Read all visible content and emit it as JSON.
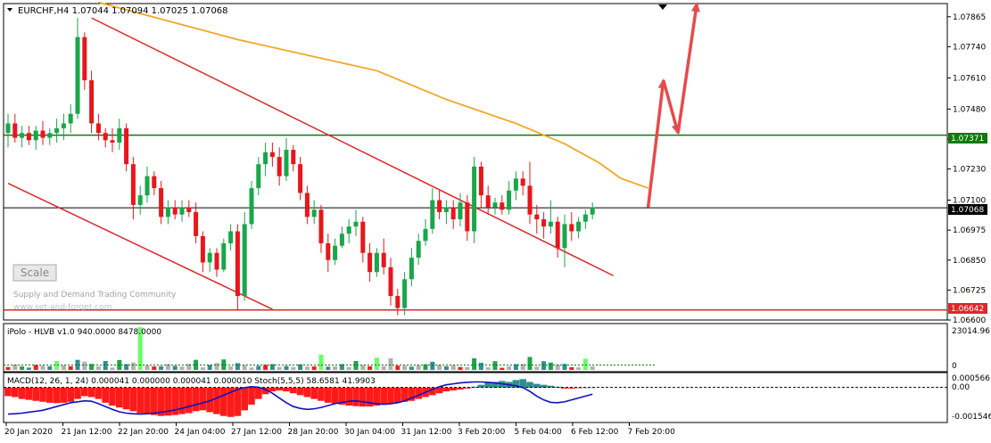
{
  "header": {
    "menu_icon": "triangle-down-icon",
    "quote_line": "EURCHF,H4  1.07044 1.07094 1.07025 1.07068"
  },
  "watermark": {
    "button_label": "Scale",
    "line1": "Supply and Demand Trading Community",
    "line2": "www.set-and-forget.com"
  },
  "colors": {
    "bull": "#1aa64a",
    "bear": "#e8161b",
    "ma": "#f5a623",
    "channel": "#e0262b",
    "support": "#e0262b",
    "resistance": "#0f7a0f",
    "macd_pos": "#2f8f8f",
    "macd_neg": "#ff1a1a",
    "stoch_line": "#1010c0",
    "axis": "#000000"
  },
  "main_axis": {
    "ticks": [
      "1.07865",
      "1.07740",
      "1.07610",
      "1.07480",
      "1.07355",
      "1.07230",
      "1.07100",
      "1.06975",
      "1.06850",
      "1.06725",
      "1.06600"
    ],
    "resistance_label": "1.07371",
    "price_label": "1.07068",
    "support_label": "1.06642"
  },
  "volume_panel": {
    "title": "iPolo - HLVB v1.0 940.0000 8478.0000",
    "axis_top": "23014.96",
    "axis_bottom": "0"
  },
  "macd_panel": {
    "title": "MACD(12, 26, 1, 24) 0.000041 0.000000 0.000041 0.000010  Stoch(5,5,5) 58.6581 41.9903",
    "axis_top": "0.000566",
    "axis_mid": "0.00",
    "axis_bottom": "-0.001546"
  },
  "time_axis": {
    "labels": [
      "20 Jan 2020",
      "21 Jan 12:00",
      "22 Jan 20:00",
      "24 Jan 04:00",
      "27 Jan 12:00",
      "28 Jan 20:00",
      "30 Jan 04:00",
      "31 Jan 12:00",
      "3 Feb 20:00",
      "5 Feb 04:00",
      "6 Feb 12:00",
      "7 Feb 20:00"
    ]
  },
  "chart_data": {
    "type": "candlestick",
    "symbol": "EURCHF",
    "timeframe": "H4",
    "ylim": [
      1.066,
      1.0792
    ],
    "candles": [
      {
        "o": 1.0738,
        "h": 1.0746,
        "l": 1.0732,
        "c": 1.0742
      },
      {
        "o": 1.0742,
        "h": 1.0746,
        "l": 1.0734,
        "c": 1.0736
      },
      {
        "o": 1.0736,
        "h": 1.0741,
        "l": 1.0732,
        "c": 1.0738
      },
      {
        "o": 1.0738,
        "h": 1.0741,
        "l": 1.0733,
        "c": 1.0735
      },
      {
        "o": 1.0735,
        "h": 1.0741,
        "l": 1.0731,
        "c": 1.0739
      },
      {
        "o": 1.0739,
        "h": 1.0743,
        "l": 1.0733,
        "c": 1.0736
      },
      {
        "o": 1.0736,
        "h": 1.074,
        "l": 1.0733,
        "c": 1.0738
      },
      {
        "o": 1.0738,
        "h": 1.0744,
        "l": 1.0734,
        "c": 1.074
      },
      {
        "o": 1.074,
        "h": 1.0746,
        "l": 1.0735,
        "c": 1.0742
      },
      {
        "o": 1.0742,
        "h": 1.075,
        "l": 1.0738,
        "c": 1.0746
      },
      {
        "o": 1.0746,
        "h": 1.0786,
        "l": 1.0744,
        "c": 1.0778
      },
      {
        "o": 1.0778,
        "h": 1.078,
        "l": 1.0756,
        "c": 1.076
      },
      {
        "o": 1.076,
        "h": 1.0764,
        "l": 1.0738,
        "c": 1.0742
      },
      {
        "o": 1.0742,
        "h": 1.0746,
        "l": 1.0735,
        "c": 1.0738
      },
      {
        "o": 1.0738,
        "h": 1.074,
        "l": 1.0732,
        "c": 1.0735
      },
      {
        "o": 1.0735,
        "h": 1.074,
        "l": 1.073,
        "c": 1.0734
      },
      {
        "o": 1.0734,
        "h": 1.0744,
        "l": 1.0731,
        "c": 1.074
      },
      {
        "o": 1.074,
        "h": 1.0742,
        "l": 1.0722,
        "c": 1.0725
      },
      {
        "o": 1.0725,
        "h": 1.0728,
        "l": 1.0702,
        "c": 1.0708
      },
      {
        "o": 1.0708,
        "h": 1.0716,
        "l": 1.0704,
        "c": 1.0712
      },
      {
        "o": 1.0712,
        "h": 1.0724,
        "l": 1.0709,
        "c": 1.072
      },
      {
        "o": 1.072,
        "h": 1.0722,
        "l": 1.0712,
        "c": 1.0715
      },
      {
        "o": 1.0715,
        "h": 1.0718,
        "l": 1.07,
        "c": 1.0703
      },
      {
        "o": 1.0703,
        "h": 1.071,
        "l": 1.07,
        "c": 1.0707
      },
      {
        "o": 1.0707,
        "h": 1.071,
        "l": 1.0702,
        "c": 1.0704
      },
      {
        "o": 1.0704,
        "h": 1.071,
        "l": 1.0701,
        "c": 1.0707
      },
      {
        "o": 1.0707,
        "h": 1.071,
        "l": 1.0703,
        "c": 1.0705
      },
      {
        "o": 1.0705,
        "h": 1.0709,
        "l": 1.0692,
        "c": 1.0695
      },
      {
        "o": 1.0695,
        "h": 1.0697,
        "l": 1.068,
        "c": 1.0684
      },
      {
        "o": 1.0684,
        "h": 1.069,
        "l": 1.068,
        "c": 1.0688
      },
      {
        "o": 1.0688,
        "h": 1.069,
        "l": 1.0678,
        "c": 1.0681
      },
      {
        "o": 1.0681,
        "h": 1.0694,
        "l": 1.068,
        "c": 1.0692
      },
      {
        "o": 1.0692,
        "h": 1.07,
        "l": 1.0689,
        "c": 1.0697
      },
      {
        "o": 1.0697,
        "h": 1.07,
        "l": 1.0664,
        "c": 1.067
      },
      {
        "o": 1.067,
        "h": 1.0705,
        "l": 1.0668,
        "c": 1.07
      },
      {
        "o": 1.07,
        "h": 1.0718,
        "l": 1.0698,
        "c": 1.0715
      },
      {
        "o": 1.0715,
        "h": 1.0728,
        "l": 1.0712,
        "c": 1.0725
      },
      {
        "o": 1.0725,
        "h": 1.0734,
        "l": 1.072,
        "c": 1.073
      },
      {
        "o": 1.073,
        "h": 1.0734,
        "l": 1.0724,
        "c": 1.0728
      },
      {
        "o": 1.0728,
        "h": 1.0732,
        "l": 1.0716,
        "c": 1.072
      },
      {
        "o": 1.072,
        "h": 1.0736,
        "l": 1.0718,
        "c": 1.0731
      },
      {
        "o": 1.0731,
        "h": 1.0733,
        "l": 1.0722,
        "c": 1.0725
      },
      {
        "o": 1.0725,
        "h": 1.0728,
        "l": 1.071,
        "c": 1.0713
      },
      {
        "o": 1.0713,
        "h": 1.0716,
        "l": 1.07,
        "c": 1.0703
      },
      {
        "o": 1.0703,
        "h": 1.071,
        "l": 1.07,
        "c": 1.0706
      },
      {
        "o": 1.0706,
        "h": 1.0708,
        "l": 1.0688,
        "c": 1.0692
      },
      {
        "o": 1.0692,
        "h": 1.0696,
        "l": 1.068,
        "c": 1.0685
      },
      {
        "o": 1.0685,
        "h": 1.0694,
        "l": 1.0683,
        "c": 1.0691
      },
      {
        "o": 1.0691,
        "h": 1.0699,
        "l": 1.069,
        "c": 1.0696
      },
      {
        "o": 1.0696,
        "h": 1.0702,
        "l": 1.0692,
        "c": 1.0699
      },
      {
        "o": 1.0699,
        "h": 1.0706,
        "l": 1.0695,
        "c": 1.0701
      },
      {
        "o": 1.0701,
        "h": 1.0703,
        "l": 1.0684,
        "c": 1.0688
      },
      {
        "o": 1.0688,
        "h": 1.0692,
        "l": 1.0676,
        "c": 1.068
      },
      {
        "o": 1.068,
        "h": 1.069,
        "l": 1.0678,
        "c": 1.0688
      },
      {
        "o": 1.0688,
        "h": 1.0694,
        "l": 1.0679,
        "c": 1.0682
      },
      {
        "o": 1.0682,
        "h": 1.0686,
        "l": 1.0666,
        "c": 1.067
      },
      {
        "o": 1.067,
        "h": 1.0673,
        "l": 1.0662,
        "c": 1.0665
      },
      {
        "o": 1.0665,
        "h": 1.068,
        "l": 1.0662,
        "c": 1.0677
      },
      {
        "o": 1.0677,
        "h": 1.069,
        "l": 1.0674,
        "c": 1.0686
      },
      {
        "o": 1.0686,
        "h": 1.0696,
        "l": 1.0683,
        "c": 1.0693
      },
      {
        "o": 1.0693,
        "h": 1.0702,
        "l": 1.0691,
        "c": 1.0698
      },
      {
        "o": 1.0698,
        "h": 1.0715,
        "l": 1.0696,
        "c": 1.071
      },
      {
        "o": 1.071,
        "h": 1.0714,
        "l": 1.0702,
        "c": 1.0705
      },
      {
        "o": 1.0705,
        "h": 1.071,
        "l": 1.07,
        "c": 1.0707
      },
      {
        "o": 1.0707,
        "h": 1.071,
        "l": 1.0698,
        "c": 1.0702
      },
      {
        "o": 1.0702,
        "h": 1.0713,
        "l": 1.0699,
        "c": 1.0709
      },
      {
        "o": 1.0709,
        "h": 1.0712,
        "l": 1.0693,
        "c": 1.0697
      },
      {
        "o": 1.0697,
        "h": 1.0728,
        "l": 1.0692,
        "c": 1.0724
      },
      {
        "o": 1.0724,
        "h": 1.0726,
        "l": 1.0707,
        "c": 1.0712
      },
      {
        "o": 1.0712,
        "h": 1.0716,
        "l": 1.0704,
        "c": 1.0707
      },
      {
        "o": 1.0707,
        "h": 1.0711,
        "l": 1.0704,
        "c": 1.0709
      },
      {
        "o": 1.0709,
        "h": 1.0712,
        "l": 1.0704,
        "c": 1.0706
      },
      {
        "o": 1.0706,
        "h": 1.0718,
        "l": 1.0704,
        "c": 1.0714
      },
      {
        "o": 1.0714,
        "h": 1.0722,
        "l": 1.071,
        "c": 1.0719
      },
      {
        "o": 1.0719,
        "h": 1.0722,
        "l": 1.0712,
        "c": 1.0716
      },
      {
        "o": 1.0716,
        "h": 1.0726,
        "l": 1.07,
        "c": 1.0704
      },
      {
        "o": 1.0704,
        "h": 1.0708,
        "l": 1.0696,
        "c": 1.0702
      },
      {
        "o": 1.0702,
        "h": 1.0705,
        "l": 1.0694,
        "c": 1.0699
      },
      {
        "o": 1.0699,
        "h": 1.071,
        "l": 1.0696,
        "c": 1.0701
      },
      {
        "o": 1.0701,
        "h": 1.0703,
        "l": 1.0686,
        "c": 1.069
      },
      {
        "o": 1.069,
        "h": 1.0704,
        "l": 1.0682,
        "c": 1.07
      },
      {
        "o": 1.07,
        "h": 1.0705,
        "l": 1.0693,
        "c": 1.0697
      },
      {
        "o": 1.0697,
        "h": 1.0703,
        "l": 1.0694,
        "c": 1.0701
      },
      {
        "o": 1.0701,
        "h": 1.0706,
        "l": 1.0698,
        "c": 1.0704
      },
      {
        "o": 1.0704,
        "h": 1.0709,
        "l": 1.0702,
        "c": 1.0707
      }
    ],
    "moving_average": [
      [
        13,
        1.07925
      ],
      [
        33,
        1.0777
      ],
      [
        53,
        1.0764
      ],
      [
        63,
        1.0752
      ],
      [
        73,
        1.0742
      ],
      [
        80,
        1.07335
      ],
      [
        85,
        1.07255
      ],
      [
        88,
        1.07192
      ],
      [
        92,
        1.0715
      ]
    ],
    "channel_lines": [
      {
        "from": [
          12,
          1.0786
        ],
        "to": [
          87,
          1.06785
        ]
      },
      {
        "from": [
          0,
          1.0717
        ],
        "to": [
          38,
          1.06645
        ]
      }
    ],
    "horizontal_levels": {
      "resistance": 1.07371,
      "current": 1.07068,
      "support": 1.06642
    },
    "projection_arrow": [
      [
        92,
        1.0707
      ],
      [
        94.2,
        1.076
      ],
      [
        96.3,
        1.0738
      ],
      [
        99,
        1.0792
      ]
    ],
    "volume_panel": {
      "ylim": [
        0,
        23014.96
      ],
      "bars": [
        1500,
        2800,
        1800,
        1200,
        2600,
        2200,
        1900,
        4600,
        2400,
        1900,
        5200,
        4300,
        3100,
        1800,
        4600,
        1200,
        5100,
        3000,
        3800,
        22000,
        2300,
        1800,
        1900,
        3000,
        2100,
        1700,
        3100,
        5200,
        1300,
        2600,
        3600,
        5400,
        1800,
        3500,
        2400,
        1200,
        2100,
        2600,
        3000,
        1500,
        2000,
        1500,
        2900,
        1700,
        1800,
        7900,
        1700,
        1800,
        3000,
        1500,
        4600,
        2400,
        1900,
        6300,
        1900,
        6000,
        2200,
        2200,
        1700,
        2400,
        2900,
        4200,
        2600,
        1900,
        2300,
        1500,
        1500,
        6000,
        3700,
        1300,
        4500,
        1100,
        1800,
        3000,
        3100,
        6700,
        1700,
        4500,
        3800,
        2800,
        3100,
        1400,
        1300,
        5800,
        1800
      ],
      "colors": [
        "#ff1a1a",
        "#b0b0b0",
        "#1aa64a",
        "#2f8f8f",
        "#ff1a1a",
        "#b0b0b0",
        "#2f8f8f",
        "#66ff66",
        "#b0b0b0",
        "#ff1a1a",
        "#2f8f8f",
        "#b0b0b0",
        "#1aa64a",
        "#b0b0b0",
        "#2f8f8f",
        "#b0b0b0",
        "#1aa64a",
        "#2f8f8f",
        "#b0b0b0",
        "#66ff66",
        "#b0b0b0",
        "#ff1a1a",
        "#2f8f8f",
        "#b0b0b0",
        "#2f8f8f",
        "#b0b0b0",
        "#b0b0b0",
        "#1aa64a",
        "#b0b0b0",
        "#2f8f8f",
        "#b0b0b0",
        "#1aa64a",
        "#b0b0b0",
        "#2f8f8f",
        "#b0b0b0",
        "#b0b0b0",
        "#2f8f8f",
        "#ff1a1a",
        "#2f8f8f",
        "#b0b0b0",
        "#2f8f8f",
        "#b0b0b0",
        "#2f8f8f",
        "#b0b0b0",
        "#ff1a1a",
        "#66ff66",
        "#2f8f8f",
        "#b0b0b0",
        "#2f8f8f",
        "#b0b0b0",
        "#1aa64a",
        "#b0b0b0",
        "#ff1a1a",
        "#66ff66",
        "#b0b0b0",
        "#b0b0b0",
        "#ff1a1a",
        "#b0b0b0",
        "#2f8f8f",
        "#b0b0b0",
        "#1aa64a",
        "#2f8f8f",
        "#b0b0b0",
        "#2f8f8f",
        "#b0b0b0",
        "#ff1a1a",
        "#b0b0b0",
        "#1aa64a",
        "#2f8f8f",
        "#b0b0b0",
        "#1aa64a",
        "#ff1a1a",
        "#b0b0b0",
        "#2f8f8f",
        "#b0b0b0",
        "#1aa64a",
        "#b0b0b0",
        "#2f8f8f",
        "#1aa64a",
        "#b0b0b0",
        "#2f8f8f",
        "#ff1a1a",
        "#b0b0b0",
        "#66ff66",
        "#b0b0b0"
      ],
      "reference_level": 1600
    },
    "macd_panel": {
      "ylim": [
        -0.00175,
        0.0007
      ],
      "histogram": [
        -0.00045,
        -0.0005,
        -0.0006,
        -0.00065,
        -0.0007,
        -0.00075,
        -0.0008,
        -0.00082,
        -0.0008,
        -0.00075,
        -0.0006,
        -0.00045,
        -0.0005,
        -0.0006,
        -0.0008,
        -0.00095,
        -0.00105,
        -0.00115,
        -0.00125,
        -0.00135,
        -0.0014,
        -0.00145,
        -0.0015,
        -0.00148,
        -0.00145,
        -0.0014,
        -0.00135,
        -0.00125,
        -0.0012,
        -0.0013,
        -0.0014,
        -0.0015,
        -0.00155,
        -0.0015,
        -0.0012,
        -0.0009,
        -0.0006,
        -0.00035,
        -0.0002,
        -0.00015,
        -0.0002,
        -0.0003,
        -0.0004,
        -0.0005,
        -0.0006,
        -0.0007,
        -0.0008,
        -0.00085,
        -0.0009,
        -0.00095,
        -0.00098,
        -0.001,
        -0.001,
        -0.00095,
        -0.0009,
        -0.00085,
        -0.0008,
        -0.00075,
        -0.0007,
        -0.0006,
        -0.0005,
        -0.0004,
        -0.0003,
        -0.0002,
        -0.00015,
        -0.0001,
        -5e-05,
        5e-05,
        0.00015,
        0.00025,
        0.0003,
        0.00035,
        0.0003,
        0.0004,
        0.00045,
        0.0003,
        0.0002,
        0.00015,
        0.0001,
        5e-05,
        -5e-05,
        -5e-05,
        -3e-05,
        0.0,
        1e-05
      ],
      "signal": [
        -0.0014,
        -0.00138,
        -0.00135,
        -0.0013,
        -0.00125,
        -0.0012,
        -0.0011,
        -0.001,
        -0.0009,
        -0.0008,
        -0.00075,
        -0.0007,
        -0.00072,
        -0.00085,
        -0.001,
        -0.00115,
        -0.00128,
        -0.00135,
        -0.00138,
        -0.0014,
        -0.00138,
        -0.00135,
        -0.0013,
        -0.00125,
        -0.00118,
        -0.0011,
        -0.001,
        -0.0009,
        -0.0008,
        -0.0007,
        -0.00055,
        -0.0004,
        -0.00025,
        -0.0001,
        0.0,
        5e-05,
        2e-05,
        -0.0001,
        -0.0003,
        -0.00055,
        -0.0008,
        -0.001,
        -0.0011,
        -0.00115,
        -0.00112,
        -0.00105,
        -0.00095,
        -0.00085,
        -0.00078,
        -0.00072,
        -0.0007,
        -0.00075,
        -0.0008,
        -0.00085,
        -0.00088,
        -0.00085,
        -0.0008,
        -0.0007,
        -0.00055,
        -0.0004,
        -0.00025,
        -0.0001,
        5e-05,
        0.00015,
        0.0002,
        0.00025,
        0.00028,
        0.0003,
        0.0003,
        0.00028,
        0.00025,
        0.0002,
        0.00015,
        0.0001,
        0.0,
        -0.0002,
        -0.00045,
        -0.00065,
        -0.00078,
        -0.0008,
        -0.00075,
        -0.00065,
        -0.00055,
        -0.00045,
        -0.00035
      ],
      "zero_line": 1e-05
    }
  }
}
